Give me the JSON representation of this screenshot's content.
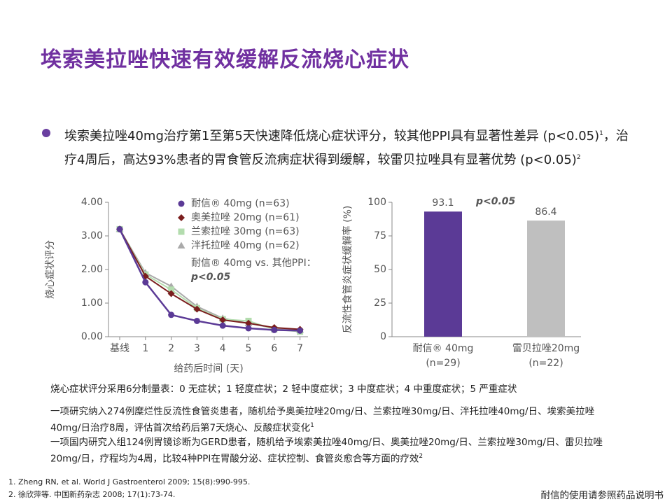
{
  "header": {
    "title": "埃索美拉唑快速有效缓解反流烧心症状"
  },
  "bullet": [
    "埃索美拉唑40mg治疗第1至第5天快速降低烧心症状评分，较其他PPI具有显著性差异 (p<0.05)",
    "1",
    "，治疗4周后，高达93%患者的胃食管反流病症状得到缓解，较雷贝拉唑具有显著优势 (p<0.05)",
    "2"
  ],
  "notes": [
    [
      "烧心症状评分采用6分制量表：0 无症状；1 轻度症状；2 轻中度症状；3 中度症状；4 中重度症状；5 严重症状"
    ],
    [
      "一项研究纳入274例糜烂性反流性食管炎患者，随机给予奥美拉唑20mg/日、兰索拉唑30mg/日、泮托拉唑40mg/日、埃索美拉唑40mg/日治疗8周，评估首次给药后第7天烧心、反酸症状变化",
      "1"
    ],
    [
      "一项国内研究入组124例胃镜诊断为GERD患者，随机给予埃索美拉唑40mg/日、奥美拉唑20mg/日、兰索拉唑30mg/日、雷贝拉唑20mg/日，疗程均为4周，比较4种PPI在胃酸分泌、症状控制、食管炎愈合等方面的疗效",
      "2"
    ]
  ],
  "references": [
    "1. Zheng RN, et al. World J Gastroenterol 2009; 15(8):990-995.",
    "2. 徐欣萍等. 中国新药杂志 2008; 17(1):73-74."
  ],
  "footer": "耐信的使用请参照药品说明书",
  "chart_data": [
    {
      "type": "line",
      "x_label": "给药后时间 (天)",
      "y_label": "烧心症状评分",
      "categories": [
        "基线",
        "1",
        "2",
        "3",
        "4",
        "5",
        "6",
        "7"
      ],
      "ylim": [
        0,
        4
      ],
      "yticks": [
        {
          "value": 0,
          "label": "0.00"
        },
        {
          "value": 1,
          "label": "1.00"
        },
        {
          "value": 2,
          "label": "2.00"
        },
        {
          "value": 3,
          "label": "3.00"
        },
        {
          "value": 4,
          "label": "4.00"
        }
      ],
      "series": [
        {
          "name": "耐信® 40mg (n=63)",
          "color": "#5b3a96",
          "marker": "circle",
          "values": [
            3.2,
            1.62,
            0.65,
            0.47,
            0.33,
            0.25,
            0.2,
            0.18
          ]
        },
        {
          "name": "奥美拉唑 20mg (n=61)",
          "color": "#7b1e1e",
          "marker": "diamond",
          "values": [
            3.2,
            1.8,
            1.28,
            0.82,
            0.5,
            0.4,
            0.27,
            0.22
          ]
        },
        {
          "name": "兰索拉唑 30mg (n=63)",
          "color": "#b3dcae",
          "marker": "square",
          "values": [
            3.2,
            1.85,
            1.4,
            0.85,
            0.52,
            0.47,
            0.22,
            0.15
          ]
        },
        {
          "name": "泮托拉唑 40mg (n=62)",
          "color": "#aaaaaa",
          "marker": "triangle",
          "values": [
            3.2,
            1.9,
            1.5,
            0.9,
            0.55,
            0.4,
            0.25,
            0.2
          ]
        }
      ],
      "annotations": [
        "耐信® 40mg vs. 其他PPI：",
        "p<0.05"
      ]
    },
    {
      "type": "bar",
      "y_label": "反流性食管炎症状缓解率 (%)",
      "categories": [
        "耐信® 40mg",
        "雷贝拉唑20mg"
      ],
      "category_sublabels": [
        "(n=29)",
        "(n=22)"
      ],
      "values": [
        93.1,
        86.4
      ],
      "colors": [
        "#5b3a96",
        "#bfbfbf"
      ],
      "ylim": [
        0,
        100
      ],
      "yticks": [
        0,
        25,
        50,
        75,
        100
      ],
      "annotations": [
        "p<0.05"
      ]
    }
  ]
}
